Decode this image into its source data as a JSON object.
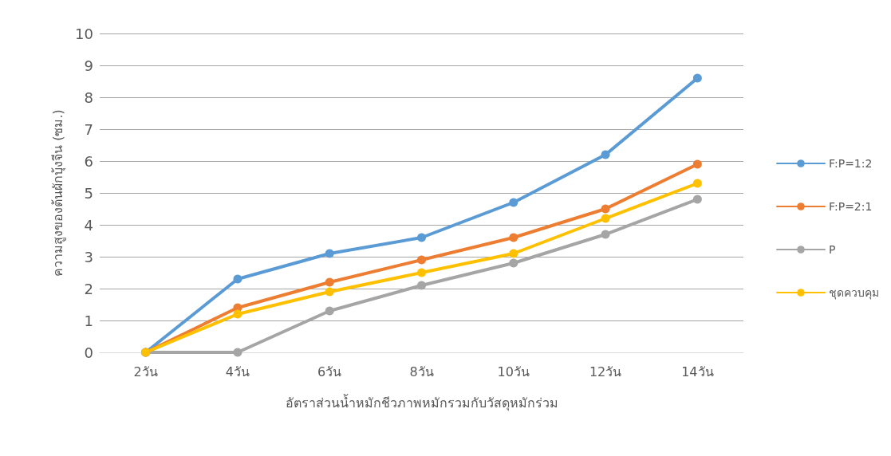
{
  "chart_data": {
    "type": "line",
    "xlabel": "อัตราส่วนน้ำหมักชีวภาพหมักรวมกับวัสดุหมักร่วม",
    "ylabel": "ความสูงของต้นผักบุ้งจีน (ซม.)",
    "categories": [
      "2วัน",
      "4วัน",
      "6วัน",
      "8วัน",
      "10วัน",
      "12วัน",
      "14วัน"
    ],
    "series": [
      {
        "name": "F:P=1:2",
        "color": "#5b9bd5",
        "values": [
          0,
          2.3,
          3.1,
          3.6,
          4.7,
          6.2,
          8.6
        ]
      },
      {
        "name": "F:P=2:1",
        "color": "#ed7d31",
        "values": [
          0,
          1.4,
          2.2,
          2.9,
          3.6,
          4.5,
          5.9
        ]
      },
      {
        "name": "P",
        "color": "#a5a5a5",
        "values": [
          0,
          0,
          1.3,
          2.1,
          2.8,
          3.7,
          4.8
        ]
      },
      {
        "name": "ชุดควบคุม",
        "color": "#ffc000",
        "values": [
          0,
          1.2,
          1.9,
          2.5,
          3.1,
          4.2,
          5.3
        ]
      }
    ],
    "ylim": [
      0,
      10
    ],
    "yticks": [
      0,
      1,
      2,
      3,
      4,
      5,
      6,
      7,
      8,
      9,
      10
    ],
    "grid": "y",
    "legend": "right",
    "marker": "circle",
    "line_style": "solid"
  }
}
